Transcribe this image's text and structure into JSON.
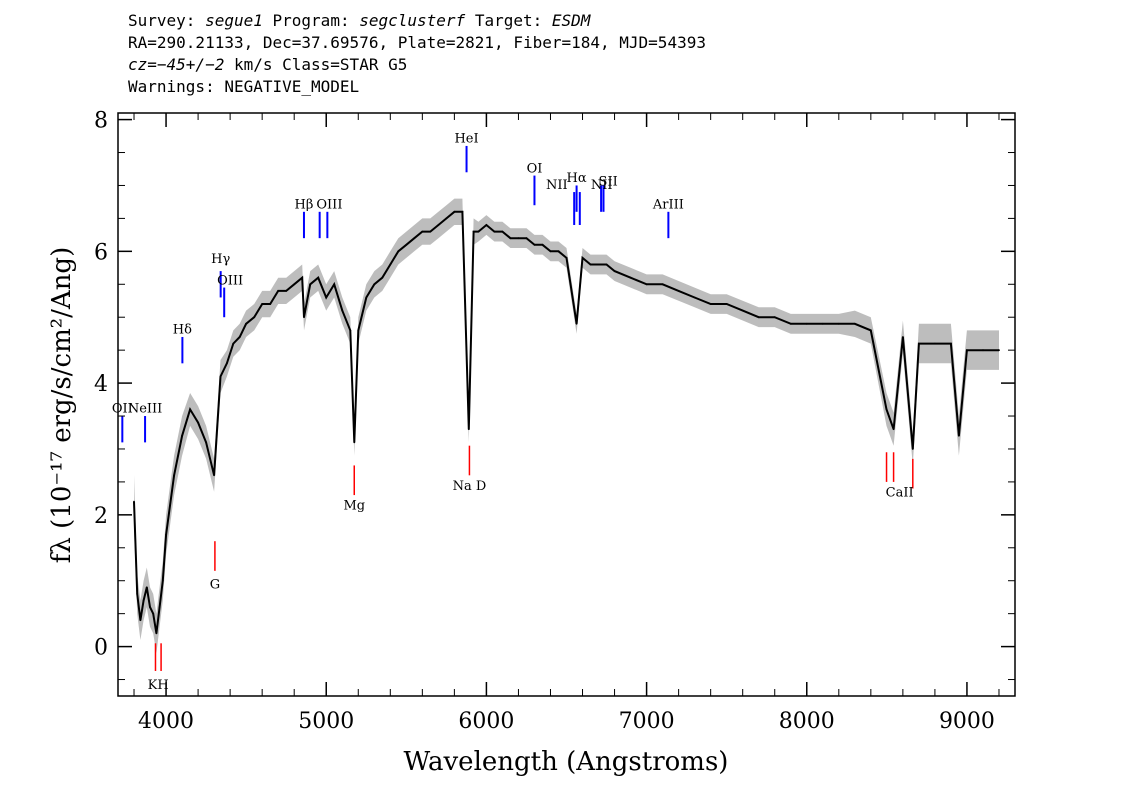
{
  "header": {
    "survey_label": "Survey:",
    "survey": "segue1",
    "program_label": "Program:",
    "program": "segclusterf",
    "target_label": "Target:",
    "target": "ESDM",
    "line2": "RA=290.21133, Dec=37.69576, Plate=2821, Fiber=184, MJD=54393",
    "cz": "cz=−45+/−2",
    "cz_rest": " km/s Class=STAR G5",
    "warnings": "Warnings: NEGATIVE_MODEL"
  },
  "colors": {
    "flux": "#000000",
    "error": "#bdbdbd",
    "emission": "#0000ff",
    "absorption": "#ff0000"
  },
  "chart_data": {
    "type": "line",
    "xlabel": "Wavelength (Angstroms)",
    "ylabel": "fλ (10⁻¹⁷ erg/s/cm²/Ang)",
    "xlim": [
      3700,
      9300
    ],
    "ylim": [
      -0.75,
      8.1
    ],
    "x_ticks": [
      4000,
      5000,
      6000,
      7000,
      8000,
      9000
    ],
    "y_ticks": [
      0,
      2,
      4,
      6,
      8
    ],
    "series": [
      {
        "x": [
          3800,
          3820,
          3840,
          3860,
          3880,
          3900,
          3920,
          3940,
          3960,
          3980,
          4000,
          4050,
          4100,
          4150,
          4200,
          4250,
          4300,
          4340,
          4380,
          4420,
          4460,
          4500,
          4550,
          4600,
          4650,
          4700,
          4750,
          4800,
          4850,
          4861,
          4900,
          4950,
          5000,
          5050,
          5100,
          5150,
          5175,
          5200,
          5250,
          5300,
          5350,
          5400,
          5450,
          5500,
          5550,
          5600,
          5650,
          5700,
          5750,
          5800,
          5850,
          5890,
          5920,
          5950,
          6000,
          6050,
          6100,
          6150,
          6200,
          6250,
          6300,
          6350,
          6400,
          6450,
          6500,
          6563,
          6600,
          6650,
          6700,
          6750,
          6800,
          6900,
          7000,
          7100,
          7200,
          7300,
          7400,
          7500,
          7600,
          7700,
          7800,
          7900,
          8000,
          8100,
          8200,
          8300,
          8400,
          8498,
          8542,
          8600,
          8662,
          8700,
          8800,
          8900,
          8950,
          9000,
          9100,
          9200
        ],
        "y": [
          2.2,
          0.8,
          0.4,
          0.7,
          0.9,
          0.6,
          0.5,
          0.2,
          0.6,
          1.0,
          1.7,
          2.6,
          3.2,
          3.6,
          3.4,
          3.1,
          2.6,
          4.1,
          4.3,
          4.6,
          4.7,
          4.9,
          5.0,
          5.2,
          5.2,
          5.4,
          5.4,
          5.5,
          5.6,
          5.0,
          5.5,
          5.6,
          5.3,
          5.5,
          5.1,
          4.8,
          3.1,
          4.8,
          5.3,
          5.5,
          5.6,
          5.8,
          6.0,
          6.1,
          6.2,
          6.3,
          6.3,
          6.4,
          6.5,
          6.6,
          6.6,
          3.3,
          6.3,
          6.3,
          6.4,
          6.3,
          6.3,
          6.2,
          6.2,
          6.2,
          6.1,
          6.1,
          6.0,
          6.0,
          5.9,
          4.9,
          5.9,
          5.8,
          5.8,
          5.8,
          5.7,
          5.6,
          5.5,
          5.5,
          5.4,
          5.3,
          5.2,
          5.2,
          5.1,
          5.0,
          5.0,
          4.9,
          4.9,
          4.9,
          4.9,
          4.9,
          4.8,
          3.6,
          3.3,
          4.7,
          3.0,
          4.6,
          4.6,
          4.6,
          3.2,
          4.5,
          4.5,
          4.5
        ],
        "error": [
          0.4,
          0.3,
          0.3,
          0.3,
          0.3,
          0.3,
          0.3,
          0.3,
          0.3,
          0.3,
          0.3,
          0.3,
          0.3,
          0.25,
          0.25,
          0.25,
          0.25,
          0.25,
          0.2,
          0.2,
          0.2,
          0.2,
          0.2,
          0.2,
          0.2,
          0.2,
          0.2,
          0.2,
          0.2,
          0.2,
          0.2,
          0.2,
          0.2,
          0.2,
          0.2,
          0.2,
          0.2,
          0.2,
          0.2,
          0.2,
          0.2,
          0.2,
          0.2,
          0.2,
          0.2,
          0.2,
          0.2,
          0.2,
          0.2,
          0.2,
          0.2,
          0.2,
          0.2,
          0.15,
          0.15,
          0.15,
          0.15,
          0.15,
          0.15,
          0.15,
          0.15,
          0.15,
          0.15,
          0.15,
          0.15,
          0.15,
          0.15,
          0.15,
          0.15,
          0.15,
          0.15,
          0.15,
          0.15,
          0.15,
          0.15,
          0.15,
          0.15,
          0.15,
          0.15,
          0.15,
          0.15,
          0.15,
          0.15,
          0.15,
          0.15,
          0.2,
          0.2,
          0.25,
          0.25,
          0.25,
          0.25,
          0.3,
          0.3,
          0.3,
          0.3,
          0.3,
          0.3,
          0.3
        ]
      }
    ],
    "emission_lines": [
      {
        "label": "OII",
        "x": 3727,
        "y0": 3.1,
        "y1": 3.5
      },
      {
        "label": "NeIII",
        "x": 3869,
        "y0": 3.1,
        "y1": 3.5
      },
      {
        "label": "Hδ",
        "x": 4102,
        "y0": 4.3,
        "y1": 4.7
      },
      {
        "label": "Hγ",
        "x": 4341,
        "y0": 5.3,
        "y1": 5.7
      },
      {
        "label": "OIII",
        "x": 4363,
        "y0": 5.0,
        "y1": 5.45
      },
      {
        "label": "Hβ",
        "x": 4861,
        "y0": 6.2,
        "y1": 6.6
      },
      {
        "label": "OIII",
        "x": 4959,
        "y0": 6.2,
        "y1": 6.6
      },
      {
        "label": "OIII",
        "x": 5007,
        "y0": 6.2,
        "y1": 6.6
      },
      {
        "label": "HeI",
        "x": 5876,
        "y0": 7.2,
        "y1": 7.6
      },
      {
        "label": "OI",
        "x": 6300,
        "y0": 6.7,
        "y1": 7.15
      },
      {
        "label": "NII",
        "x": 6548,
        "y0": 6.4,
        "y1": 6.9
      },
      {
        "label": "Hα",
        "x": 6563,
        "y0": 6.6,
        "y1": 7.0
      },
      {
        "label": "NII",
        "x": 6583,
        "y0": 6.4,
        "y1": 6.9
      },
      {
        "label": "SII",
        "x": 6716,
        "y0": 6.6,
        "y1": 7.0
      },
      {
        "label": "SII",
        "x": 6731,
        "y0": 6.6,
        "y1": 7.0
      },
      {
        "label": "ArIII",
        "x": 7136,
        "y0": 6.2,
        "y1": 6.6
      }
    ],
    "absorption_lines": [
      {
        "label": "K",
        "x": 3934,
        "y0": -0.37,
        "y1": 0.05
      },
      {
        "label": "H",
        "x": 3969,
        "y0": -0.37,
        "y1": 0.05
      },
      {
        "label": "G",
        "x": 4305,
        "y0": 1.15,
        "y1": 1.6
      },
      {
        "label": "Mg",
        "x": 5175,
        "y0": 2.3,
        "y1": 2.75
      },
      {
        "label": "Na D",
        "x": 5894,
        "y0": 2.6,
        "y1": 3.05
      },
      {
        "label": "CaII",
        "x": 8498,
        "y0": 2.5,
        "y1": 2.95
      },
      {
        "label": "CaII",
        "x": 8542,
        "y0": 2.5,
        "y1": 2.95
      },
      {
        "label": "CaII",
        "x": 8662,
        "y0": 2.4,
        "y1": 2.85
      }
    ],
    "line_label_positions": [
      {
        "text": "OII",
        "x": 3727,
        "y": 3.55
      },
      {
        "text": "NeIII",
        "x": 3869,
        "y": 3.55
      },
      {
        "text": "Hδ",
        "x": 4102,
        "y": 4.75
      },
      {
        "text": "Hγ",
        "x": 4341,
        "y": 5.82
      },
      {
        "text": "OIII",
        "x": 4400,
        "y": 5.5
      },
      {
        "text": "Hβ",
        "x": 4861,
        "y": 6.65
      },
      {
        "text": "OIII",
        "x": 5020,
        "y": 6.65
      },
      {
        "text": "HeI",
        "x": 5876,
        "y": 7.65
      },
      {
        "text": "OI",
        "x": 6300,
        "y": 7.2
      },
      {
        "text": "NII",
        "x": 6440,
        "y": 6.95
      },
      {
        "text": "Hα",
        "x": 6563,
        "y": 7.05
      },
      {
        "text": "SII",
        "x": 6760,
        "y": 7.0
      },
      {
        "text": "NII",
        "x": 6720,
        "y": 6.95
      },
      {
        "text": "ArIII",
        "x": 7136,
        "y": 6.65
      },
      {
        "text": "KH",
        "x": 3951,
        "y": -0.64
      },
      {
        "text": "G",
        "x": 4305,
        "y": 0.88
      },
      {
        "text": "Mg",
        "x": 5175,
        "y": 2.08
      },
      {
        "text": "Na  D",
        "x": 5894,
        "y": 2.38
      },
      {
        "text": "CaII",
        "x": 8580,
        "y": 2.28
      }
    ]
  }
}
